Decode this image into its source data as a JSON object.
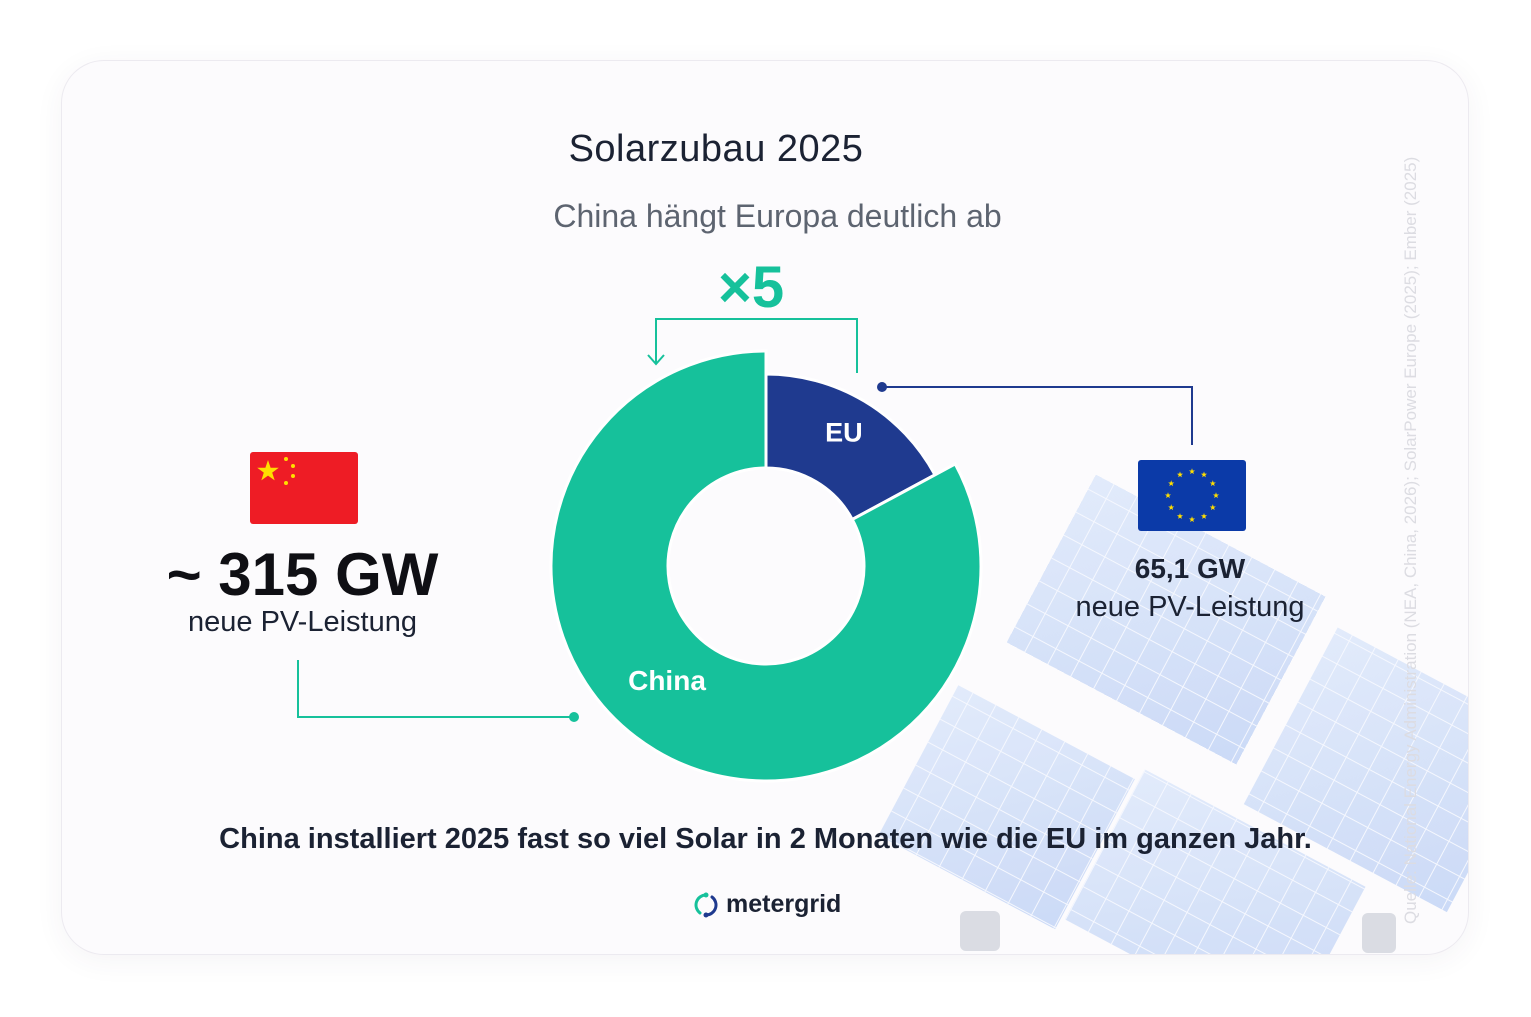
{
  "header": {
    "title": "Solarzubau 2025",
    "subtitle": "China hängt Europa deutlich ab"
  },
  "comparison": {
    "multiplier_label": "×5"
  },
  "china": {
    "value_label": "~ 315 GW",
    "caption": "neue PV-Leistung",
    "flag_icon": "china-flag-icon"
  },
  "eu": {
    "value_label": "65,1 GW",
    "caption": "neue PV-Leistung",
    "flag_icon": "eu-flag-icon"
  },
  "footnote": "China installiert 2025 fast so viel Solar in 2 Monaten wie die EU im ganzen Jahr.",
  "brand": {
    "name": "metergrid",
    "icon": "metergrid-logo-icon"
  },
  "source": "Quelle: National Energy Administration (NEA, China, 2026); SolarPower Europe (2025); Ember (2025)",
  "colors": {
    "china": "#16c19b",
    "eu": "#1f3a8f",
    "eu_flag": "#0b3aa8",
    "china_flag": "#ee1c25",
    "star": "#ffde00"
  },
  "chart_data": {
    "type": "pie",
    "variant": "donut",
    "title": "Solarzubau 2025",
    "subtitle": "China hängt Europa deutlich ab",
    "unit": "GW",
    "slices": [
      {
        "label": "EU",
        "value": 65.1
      },
      {
        "label": "China",
        "value": 315
      }
    ],
    "legend": "none"
  }
}
